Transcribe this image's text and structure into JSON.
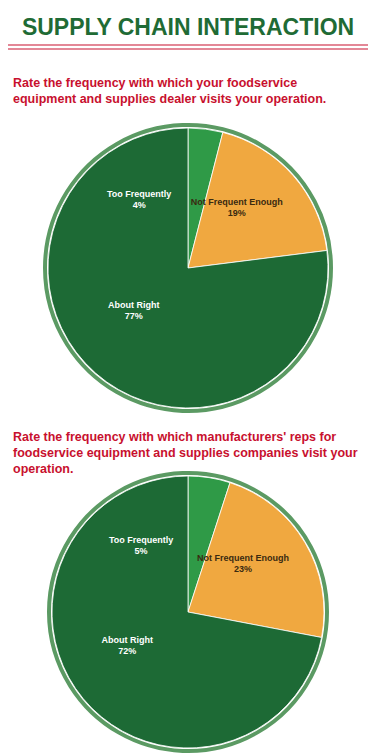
{
  "title": "SUPPLY CHAIN INTERACTION",
  "chart_data": [
    {
      "type": "pie",
      "title": "Rate the frequency with which your foodservice equipment and supplies dealer visits your operation.",
      "categories": [
        "Too Frequently",
        "Not Frequent Enough",
        "About Right"
      ],
      "values": [
        4,
        19,
        77
      ],
      "value_labels": [
        "4%",
        "19%",
        "77%"
      ],
      "colors": [
        "#2f9a47",
        "#f0a840",
        "#1d6a35"
      ],
      "data_labels": true
    },
    {
      "type": "pie",
      "title": "Rate the frequency with which manufacturers' reps for foodservice equipment and supplies companies visit your operation.",
      "categories": [
        "Too Frequently",
        "Not Frequent Enough",
        "About Right"
      ],
      "values": [
        5,
        23,
        72
      ],
      "value_labels": [
        "5%",
        "23%",
        "72%"
      ],
      "colors": [
        "#2f9a47",
        "#f0a840",
        "#1d6a35"
      ],
      "data_labels": true
    }
  ]
}
